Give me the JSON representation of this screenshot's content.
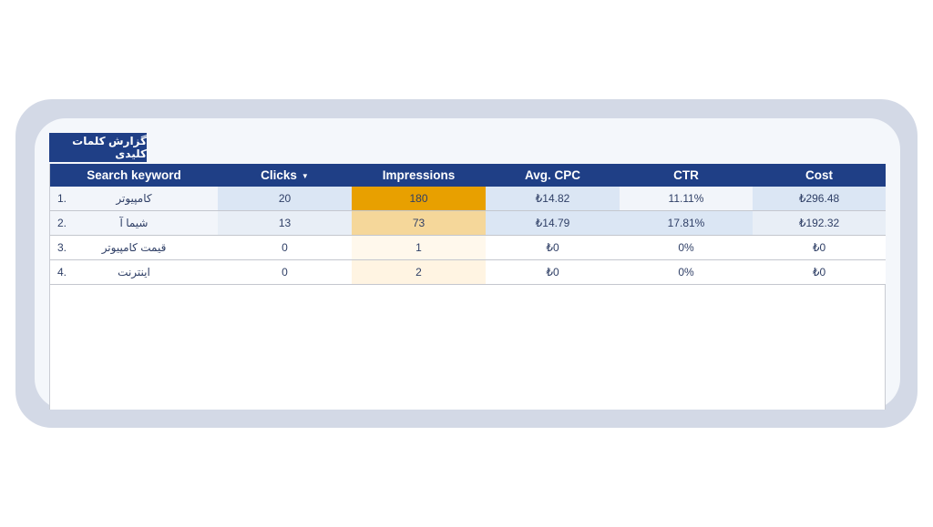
{
  "report": {
    "title": "گزارش کلمات کلیدی"
  },
  "table": {
    "headers": {
      "keyword": "Search keyword",
      "clicks": "Clicks",
      "impressions": "Impressions",
      "avg_cpc": "Avg. CPC",
      "ctr": "CTR",
      "cost": "Cost"
    },
    "sort": {
      "column": "clicks",
      "direction": "descending",
      "icon": "sort-down-icon"
    },
    "rows": [
      {
        "index": "1.",
        "keyword": "کامپیوتر",
        "clicks": "20",
        "impressions": "180",
        "avg_cpc": "₺14.82",
        "ctr": "11.11%",
        "cost": "₺296.48"
      },
      {
        "index": "2.",
        "keyword": "شیما آ",
        "clicks": "13",
        "impressions": "73",
        "avg_cpc": "₺14.79",
        "ctr": "17.81%",
        "cost": "₺192.32"
      },
      {
        "index": "3.",
        "keyword": "قیمت کامپیوتر",
        "clicks": "0",
        "impressions": "1",
        "avg_cpc": "₺0",
        "ctr": "0%",
        "cost": "₺0"
      },
      {
        "index": "4.",
        "keyword": "اینترنت",
        "clicks": "0",
        "impressions": "2",
        "avg_cpc": "₺0",
        "ctr": "0%",
        "cost": "₺0"
      }
    ]
  },
  "colors": {
    "header_bg": "#1f3f86",
    "frame": "#d3d9e6",
    "impressions_high": "#e8a000",
    "impressions_mid": "#f5d79a",
    "cell_blue": "#dbe6f4"
  }
}
